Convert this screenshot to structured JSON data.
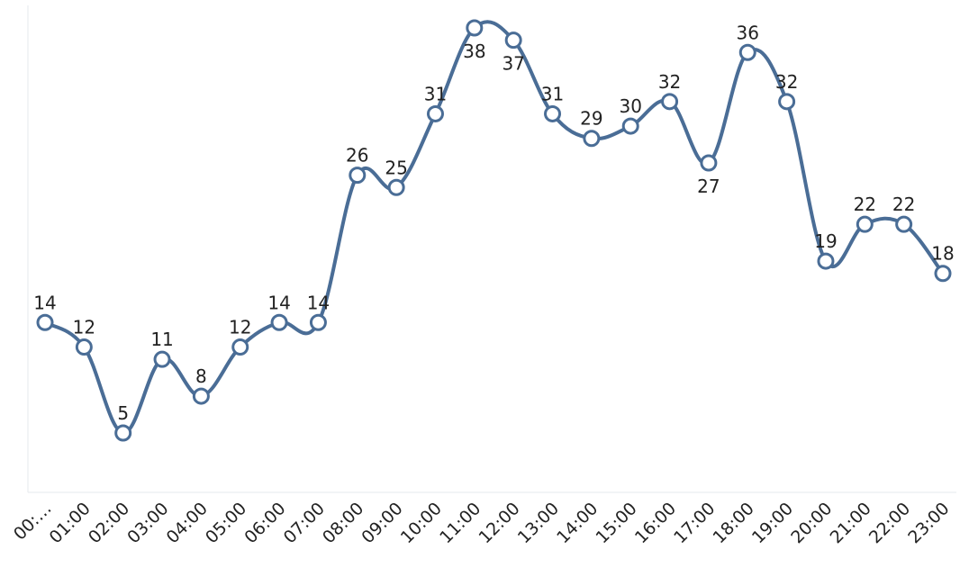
{
  "chart_data": {
    "type": "line",
    "title": "",
    "xlabel": "",
    "ylabel": "",
    "categories": [
      "00:…",
      "01:00",
      "02:00",
      "03:00",
      "04:00",
      "05:00",
      "06:00",
      "07:00",
      "08:00",
      "09:00",
      "10:00",
      "11:00",
      "12:00",
      "13:00",
      "14:00",
      "15:00",
      "16:00",
      "17:00",
      "18:00",
      "19:00",
      "20:00",
      "21:00",
      "22:00",
      "23:00"
    ],
    "series": [
      {
        "values": [
          14,
          12,
          5,
          11,
          8,
          12,
          14,
          14,
          26,
          25,
          31,
          38,
          37,
          31,
          29,
          30,
          32,
          27,
          36,
          32,
          19,
          22,
          22,
          18
        ]
      }
    ],
    "ylim": [
      0,
      40
    ],
    "grid": false,
    "legend": "none",
    "line_style": "smooth",
    "colors": {
      "line": "#4a6d96",
      "marker_fill": "#ffffff",
      "axis": "#e6e8ec",
      "text": "#222222"
    }
  }
}
